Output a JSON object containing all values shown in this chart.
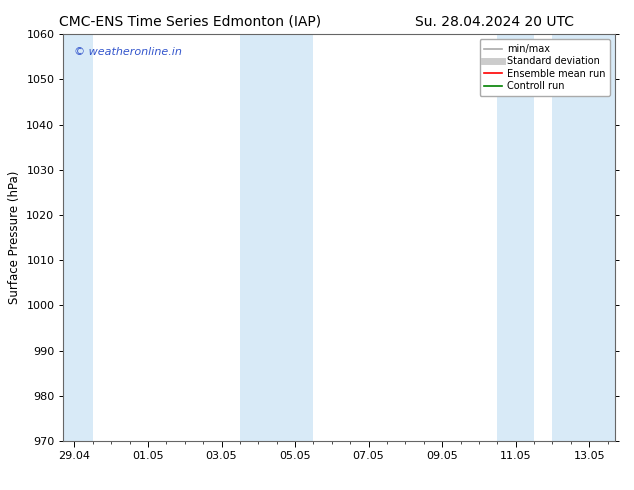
{
  "title_left": "CMC-ENS Time Series Edmonton (IAP)",
  "title_right": "Su. 28.04.2024 20 UTC",
  "ylabel": "Surface Pressure (hPa)",
  "ylim": [
    970,
    1060
  ],
  "yticks": [
    970,
    980,
    990,
    1000,
    1010,
    1020,
    1030,
    1040,
    1050,
    1060
  ],
  "xtick_labels": [
    "29.04",
    "01.05",
    "03.05",
    "05.05",
    "07.05",
    "09.05",
    "11.05",
    "13.05"
  ],
  "xtick_positions": [
    0,
    2,
    4,
    6,
    8,
    10,
    12,
    14
  ],
  "xlim": [
    -0.3,
    14.7
  ],
  "shaded_bands": [
    {
      "x_start": -0.3,
      "x_end": 0.5
    },
    {
      "x_start": 4.5,
      "x_end": 6.5
    },
    {
      "x_start": 11.5,
      "x_end": 12.5
    },
    {
      "x_start": 13.0,
      "x_end": 14.7
    }
  ],
  "shaded_color": "#d8eaf7",
  "watermark_text": "© weatheronline.in",
  "watermark_color": "#3355cc",
  "legend_items": [
    {
      "label": "min/max",
      "color": "#aaaaaa",
      "lw": 1.2
    },
    {
      "label": "Standard deviation",
      "color": "#cccccc",
      "lw": 5
    },
    {
      "label": "Ensemble mean run",
      "color": "red",
      "lw": 1.2
    },
    {
      "label": "Controll run",
      "color": "green",
      "lw": 1.2
    }
  ],
  "bg_color": "#ffffff",
  "title_fontsize": 10,
  "tick_fontsize": 8,
  "ylabel_fontsize": 8.5
}
